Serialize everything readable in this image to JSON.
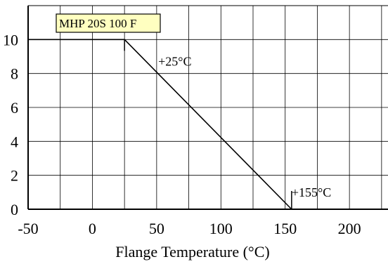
{
  "chart_data": {
    "type": "line",
    "title": "",
    "xlabel": "Flange Temperature (°C)",
    "ylabel": "",
    "xlim": [
      -50,
      230
    ],
    "ylim": [
      0,
      12
    ],
    "x_ticks": [
      -50,
      0,
      50,
      100,
      150,
      200
    ],
    "y_ticks": [
      0,
      2,
      4,
      6,
      8,
      10
    ],
    "x_grid_step": 25,
    "y_grid_step": 2,
    "grid": true,
    "legend": "none",
    "series": [
      {
        "x": [
          -50,
          25,
          155
        ],
        "y": [
          10,
          10,
          0
        ]
      }
    ],
    "annotations": [
      {
        "text": "+25°C",
        "x": 25,
        "y": 10
      },
      {
        "text": "+155°C",
        "x": 155,
        "y": 0
      }
    ],
    "model_label": "MHP 20S 100 F",
    "colors": {
      "grid": "#000000",
      "line": "#000000",
      "model_label_bg": "#ffffc0"
    }
  }
}
